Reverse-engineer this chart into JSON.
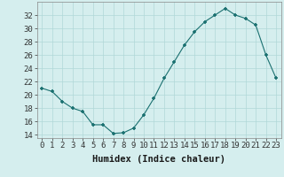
{
  "x": [
    0,
    1,
    2,
    3,
    4,
    5,
    6,
    7,
    8,
    9,
    10,
    11,
    12,
    13,
    14,
    15,
    16,
    17,
    18,
    19,
    20,
    21,
    22,
    23
  ],
  "y": [
    21.0,
    20.5,
    19.0,
    18.0,
    17.5,
    15.5,
    15.5,
    14.2,
    14.3,
    15.0,
    17.0,
    19.5,
    22.5,
    25.0,
    27.5,
    29.5,
    31.0,
    32.0,
    33.0,
    32.0,
    31.5,
    30.5,
    26.0,
    22.5
  ],
  "xlabel": "Humidex (Indice chaleur)",
  "xlim": [
    -0.5,
    23.5
  ],
  "ylim": [
    13.5,
    34.0
  ],
  "yticks": [
    14,
    16,
    18,
    20,
    22,
    24,
    26,
    28,
    30,
    32
  ],
  "xticks": [
    0,
    1,
    2,
    3,
    4,
    5,
    6,
    7,
    8,
    9,
    10,
    11,
    12,
    13,
    14,
    15,
    16,
    17,
    18,
    19,
    20,
    21,
    22,
    23
  ],
  "line_color": "#1a7070",
  "marker_color": "#1a7070",
  "bg_color": "#d5eeee",
  "grid_color": "#b0d8d8",
  "label_fontsize": 7.5,
  "tick_fontsize": 6.5
}
